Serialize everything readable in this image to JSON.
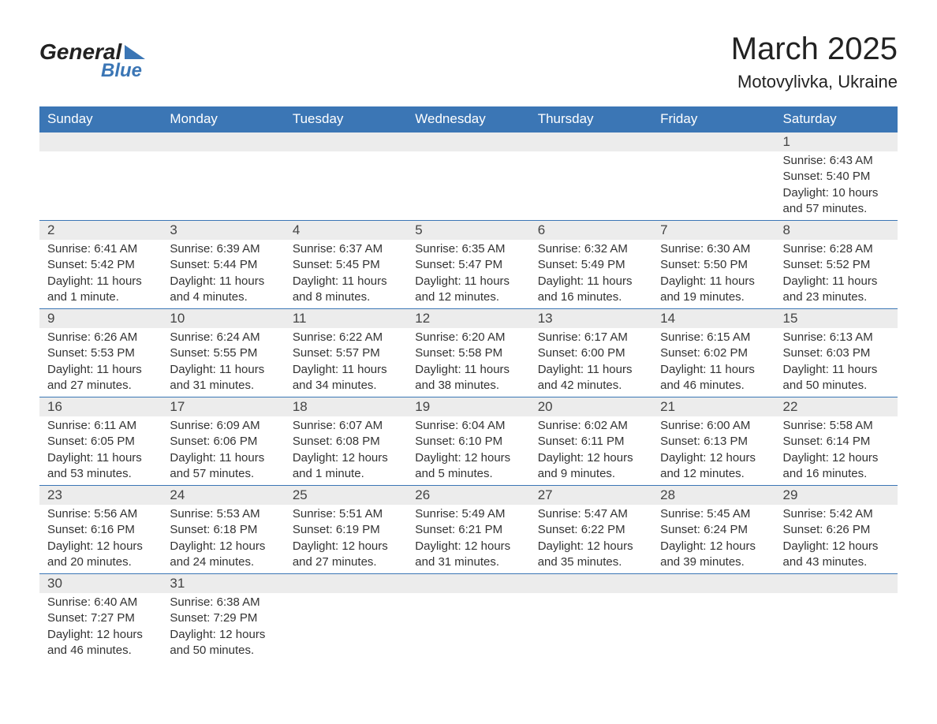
{
  "logo": {
    "text_general": "General",
    "text_blue": "Blue"
  },
  "title": "March 2025",
  "location": "Motovylivka, Ukraine",
  "colors": {
    "header_bg": "#3b76b5",
    "header_text": "#ffffff",
    "daynum_bg": "#ececec",
    "text": "#333333",
    "rule": "#3b76b5"
  },
  "typography": {
    "title_fontsize": 40,
    "location_fontsize": 22,
    "dow_fontsize": 17,
    "body_fontsize": 15
  },
  "days_of_week": [
    "Sunday",
    "Monday",
    "Tuesday",
    "Wednesday",
    "Thursday",
    "Friday",
    "Saturday"
  ],
  "weeks": [
    [
      {
        "day": "",
        "sunrise": "",
        "sunset": "",
        "daylight": ""
      },
      {
        "day": "",
        "sunrise": "",
        "sunset": "",
        "daylight": ""
      },
      {
        "day": "",
        "sunrise": "",
        "sunset": "",
        "daylight": ""
      },
      {
        "day": "",
        "sunrise": "",
        "sunset": "",
        "daylight": ""
      },
      {
        "day": "",
        "sunrise": "",
        "sunset": "",
        "daylight": ""
      },
      {
        "day": "",
        "sunrise": "",
        "sunset": "",
        "daylight": ""
      },
      {
        "day": "1",
        "sunrise": "Sunrise: 6:43 AM",
        "sunset": "Sunset: 5:40 PM",
        "daylight": "Daylight: 10 hours and 57 minutes."
      }
    ],
    [
      {
        "day": "2",
        "sunrise": "Sunrise: 6:41 AM",
        "sunset": "Sunset: 5:42 PM",
        "daylight": "Daylight: 11 hours and 1 minute."
      },
      {
        "day": "3",
        "sunrise": "Sunrise: 6:39 AM",
        "sunset": "Sunset: 5:44 PM",
        "daylight": "Daylight: 11 hours and 4 minutes."
      },
      {
        "day": "4",
        "sunrise": "Sunrise: 6:37 AM",
        "sunset": "Sunset: 5:45 PM",
        "daylight": "Daylight: 11 hours and 8 minutes."
      },
      {
        "day": "5",
        "sunrise": "Sunrise: 6:35 AM",
        "sunset": "Sunset: 5:47 PM",
        "daylight": "Daylight: 11 hours and 12 minutes."
      },
      {
        "day": "6",
        "sunrise": "Sunrise: 6:32 AM",
        "sunset": "Sunset: 5:49 PM",
        "daylight": "Daylight: 11 hours and 16 minutes."
      },
      {
        "day": "7",
        "sunrise": "Sunrise: 6:30 AM",
        "sunset": "Sunset: 5:50 PM",
        "daylight": "Daylight: 11 hours and 19 minutes."
      },
      {
        "day": "8",
        "sunrise": "Sunrise: 6:28 AM",
        "sunset": "Sunset: 5:52 PM",
        "daylight": "Daylight: 11 hours and 23 minutes."
      }
    ],
    [
      {
        "day": "9",
        "sunrise": "Sunrise: 6:26 AM",
        "sunset": "Sunset: 5:53 PM",
        "daylight": "Daylight: 11 hours and 27 minutes."
      },
      {
        "day": "10",
        "sunrise": "Sunrise: 6:24 AM",
        "sunset": "Sunset: 5:55 PM",
        "daylight": "Daylight: 11 hours and 31 minutes."
      },
      {
        "day": "11",
        "sunrise": "Sunrise: 6:22 AM",
        "sunset": "Sunset: 5:57 PM",
        "daylight": "Daylight: 11 hours and 34 minutes."
      },
      {
        "day": "12",
        "sunrise": "Sunrise: 6:20 AM",
        "sunset": "Sunset: 5:58 PM",
        "daylight": "Daylight: 11 hours and 38 minutes."
      },
      {
        "day": "13",
        "sunrise": "Sunrise: 6:17 AM",
        "sunset": "Sunset: 6:00 PM",
        "daylight": "Daylight: 11 hours and 42 minutes."
      },
      {
        "day": "14",
        "sunrise": "Sunrise: 6:15 AM",
        "sunset": "Sunset: 6:02 PM",
        "daylight": "Daylight: 11 hours and 46 minutes."
      },
      {
        "day": "15",
        "sunrise": "Sunrise: 6:13 AM",
        "sunset": "Sunset: 6:03 PM",
        "daylight": "Daylight: 11 hours and 50 minutes."
      }
    ],
    [
      {
        "day": "16",
        "sunrise": "Sunrise: 6:11 AM",
        "sunset": "Sunset: 6:05 PM",
        "daylight": "Daylight: 11 hours and 53 minutes."
      },
      {
        "day": "17",
        "sunrise": "Sunrise: 6:09 AM",
        "sunset": "Sunset: 6:06 PM",
        "daylight": "Daylight: 11 hours and 57 minutes."
      },
      {
        "day": "18",
        "sunrise": "Sunrise: 6:07 AM",
        "sunset": "Sunset: 6:08 PM",
        "daylight": "Daylight: 12 hours and 1 minute."
      },
      {
        "day": "19",
        "sunrise": "Sunrise: 6:04 AM",
        "sunset": "Sunset: 6:10 PM",
        "daylight": "Daylight: 12 hours and 5 minutes."
      },
      {
        "day": "20",
        "sunrise": "Sunrise: 6:02 AM",
        "sunset": "Sunset: 6:11 PM",
        "daylight": "Daylight: 12 hours and 9 minutes."
      },
      {
        "day": "21",
        "sunrise": "Sunrise: 6:00 AM",
        "sunset": "Sunset: 6:13 PM",
        "daylight": "Daylight: 12 hours and 12 minutes."
      },
      {
        "day": "22",
        "sunrise": "Sunrise: 5:58 AM",
        "sunset": "Sunset: 6:14 PM",
        "daylight": "Daylight: 12 hours and 16 minutes."
      }
    ],
    [
      {
        "day": "23",
        "sunrise": "Sunrise: 5:56 AM",
        "sunset": "Sunset: 6:16 PM",
        "daylight": "Daylight: 12 hours and 20 minutes."
      },
      {
        "day": "24",
        "sunrise": "Sunrise: 5:53 AM",
        "sunset": "Sunset: 6:18 PM",
        "daylight": "Daylight: 12 hours and 24 minutes."
      },
      {
        "day": "25",
        "sunrise": "Sunrise: 5:51 AM",
        "sunset": "Sunset: 6:19 PM",
        "daylight": "Daylight: 12 hours and 27 minutes."
      },
      {
        "day": "26",
        "sunrise": "Sunrise: 5:49 AM",
        "sunset": "Sunset: 6:21 PM",
        "daylight": "Daylight: 12 hours and 31 minutes."
      },
      {
        "day": "27",
        "sunrise": "Sunrise: 5:47 AM",
        "sunset": "Sunset: 6:22 PM",
        "daylight": "Daylight: 12 hours and 35 minutes."
      },
      {
        "day": "28",
        "sunrise": "Sunrise: 5:45 AM",
        "sunset": "Sunset: 6:24 PM",
        "daylight": "Daylight: 12 hours and 39 minutes."
      },
      {
        "day": "29",
        "sunrise": "Sunrise: 5:42 AM",
        "sunset": "Sunset: 6:26 PM",
        "daylight": "Daylight: 12 hours and 43 minutes."
      }
    ],
    [
      {
        "day": "30",
        "sunrise": "Sunrise: 6:40 AM",
        "sunset": "Sunset: 7:27 PM",
        "daylight": "Daylight: 12 hours and 46 minutes."
      },
      {
        "day": "31",
        "sunrise": "Sunrise: 6:38 AM",
        "sunset": "Sunset: 7:29 PM",
        "daylight": "Daylight: 12 hours and 50 minutes."
      },
      {
        "day": "",
        "sunrise": "",
        "sunset": "",
        "daylight": ""
      },
      {
        "day": "",
        "sunrise": "",
        "sunset": "",
        "daylight": ""
      },
      {
        "day": "",
        "sunrise": "",
        "sunset": "",
        "daylight": ""
      },
      {
        "day": "",
        "sunrise": "",
        "sunset": "",
        "daylight": ""
      },
      {
        "day": "",
        "sunrise": "",
        "sunset": "",
        "daylight": ""
      }
    ]
  ]
}
